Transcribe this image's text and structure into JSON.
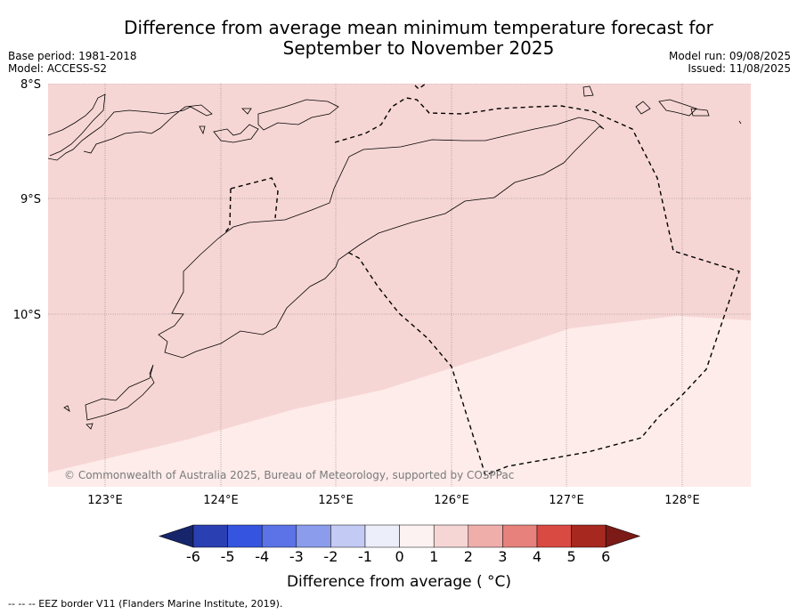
{
  "title_line1": "Difference from average mean minimum temperature forecast for",
  "title_line2": "September to November 2025",
  "base_period": "Base period: 1981-2018",
  "model": "Model: ACCESS-S2",
  "model_run": "Model run: 09/08/2025",
  "issued": "Issued: 11/08/2025",
  "lat_labels": [
    "8°S",
    "9°S",
    "10°S"
  ],
  "lon_labels": [
    "123°E",
    "124°E",
    "125°E",
    "126°E",
    "127°E",
    "128°E"
  ],
  "copyright": "© Commonwealth of Australia 2025, Bureau of Meteorology, supported by COSPPac",
  "colorbar": {
    "title": "Difference from average ( °C)",
    "ticks": [
      "-6",
      "-5",
      "-4",
      "-3",
      "-2",
      "-1",
      "0",
      "1",
      "2",
      "3",
      "4",
      "5",
      "6"
    ],
    "colors": [
      "#17256b",
      "#2a3fb1",
      "#3555e0",
      "#5b73e6",
      "#8b9cec",
      "#c3caf4",
      "#eceef9",
      "#fdf2f2",
      "#f6d6d5",
      "#efaeaa",
      "#e6817c",
      "#d94a42",
      "#a6281f",
      "#7b1a16"
    ]
  },
  "legend_footer": "-- -- -- EEZ border V11 (Flanders Marine Institute, 2019).",
  "map": {
    "fill_high": "#f6d6d5",
    "fill_low": "#fdecea",
    "anomaly_regions": [
      "1 to 2 °C",
      "0 to 1 °C"
    ]
  }
}
